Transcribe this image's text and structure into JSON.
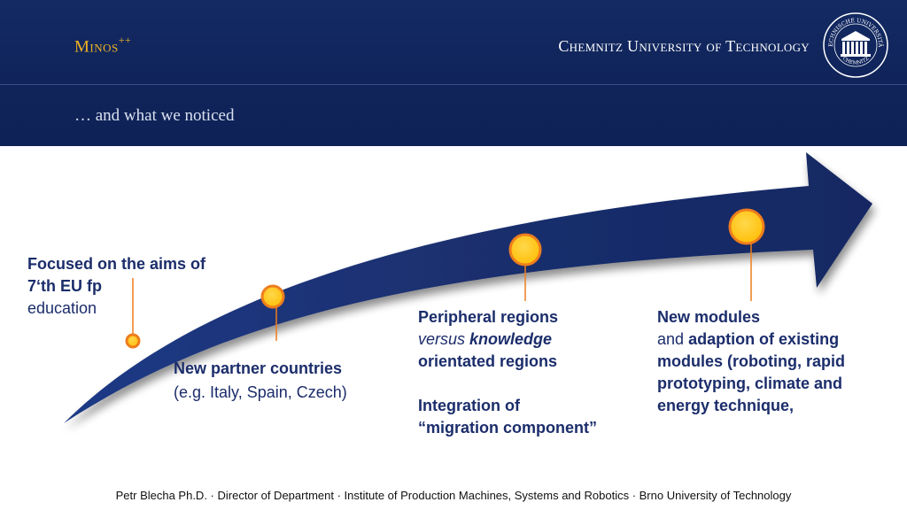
{
  "header": {
    "app_title": "Minos",
    "app_title_sup": "++",
    "university": "Chemnitz University of Technology",
    "seal_text_top": "TECHNISCHE UNIVERSITÄT",
    "seal_text_bottom": "CHEMNITZ"
  },
  "slide": {
    "subtitle": "… and what we noticed"
  },
  "milestones": [
    {
      "line1": "Focused on the aims of",
      "line2": "7‘th EU fp",
      "line3": "education"
    },
    {
      "line1": "New partner countries",
      "line2": "(e.g.  Italy, Spain,  Czech)"
    },
    {
      "line1": "Peripheral regions",
      "line2_italic": "versus",
      "line2_bold_italic": "knowledge",
      "line3": "orientated regions",
      "line4": "Integration of",
      "line5": "“migration component”"
    },
    {
      "line1": "New modules",
      "line2_normal": "and",
      "line2_bold": "adaption of existing",
      "line3": "modules (roboting,  rapid",
      "line4": "prototyping, climate and",
      "line5": "energy technique,"
    }
  ],
  "footer": {
    "text": "Petr Blecha Ph.D. · Director of Department · Institute of Production Machines, Systems and Robotics · Brno University of Technology"
  },
  "colors": {
    "header_bg": "#10245a",
    "accent": "#f0b323",
    "arrow": "#1a2f6e",
    "marker_fill": "#ffc20e",
    "marker_ring": "#ee7d1d",
    "text": "#1b2d6b"
  }
}
